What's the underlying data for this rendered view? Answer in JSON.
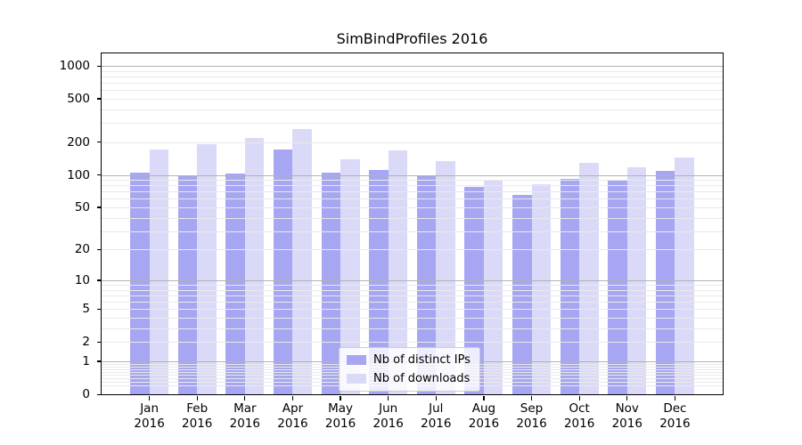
{
  "title": "SimBindProfiles 2016",
  "chart_data": {
    "type": "bar",
    "title": "SimBindProfiles 2016",
    "categories": [
      "Jan 2016",
      "Feb 2016",
      "Mar 2016",
      "Apr 2016",
      "May 2016",
      "Jun 2016",
      "Jul 2016",
      "Aug 2016",
      "Sep 2016",
      "Oct 2016",
      "Nov 2016",
      "Dec 2016"
    ],
    "series": [
      {
        "name": "Nb of distinct IPs",
        "color": "#a6a6f2",
        "values": [
          105,
          100,
          103,
          170,
          105,
          110,
          99,
          77,
          65,
          92,
          89,
          108
        ]
      },
      {
        "name": "Nb of downloads",
        "color": "#dadaf8",
        "values": [
          170,
          193,
          220,
          265,
          140,
          168,
          133,
          90,
          82,
          130,
          118,
          145
        ]
      }
    ],
    "xlabel": "",
    "ylabel": "",
    "yscale": "log1p",
    "ylim": [
      0,
      1300
    ],
    "yticks": [
      0,
      1,
      2,
      5,
      10,
      20,
      50,
      100,
      200,
      500,
      1000
    ],
    "major_gridlines": [
      1,
      10,
      100,
      1000
    ],
    "minor_gridlines": [
      0.2,
      0.3,
      0.4,
      0.5,
      0.6,
      0.7,
      0.8,
      0.9,
      2,
      3,
      4,
      5,
      6,
      7,
      8,
      9,
      20,
      30,
      40,
      50,
      60,
      70,
      80,
      90,
      200,
      300,
      400,
      500,
      600,
      700,
      800,
      900
    ],
    "grid": true,
    "legend_position": "lower center"
  },
  "colors": {
    "background": "#ffffff",
    "axis_border": "#000000",
    "major_grid": "#b2b2b2",
    "minor_grid": "#e9e9e9",
    "text": "#000000",
    "legend_border": "#cccccc"
  }
}
